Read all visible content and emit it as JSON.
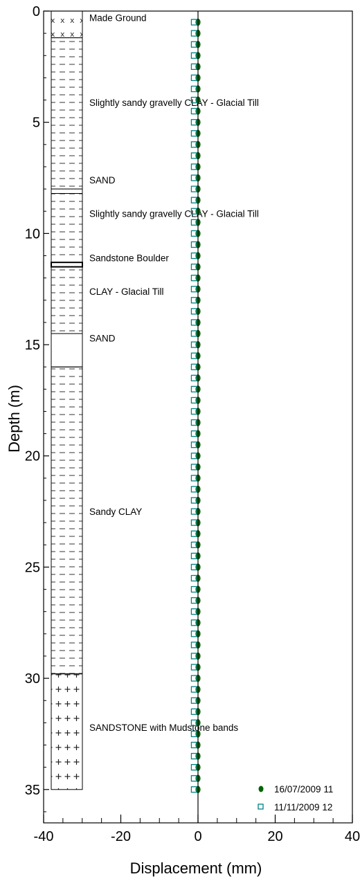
{
  "chart_data": {
    "type": "scatter",
    "title": "",
    "xlabel": "Displacement (mm)",
    "ylabel": "Depth (m)",
    "xlim": [
      -40,
      40
    ],
    "ylim": [
      0,
      36.5
    ],
    "y_inverted": true,
    "x_ticks": [
      "-40",
      "-20",
      "0",
      "20",
      "40"
    ],
    "y_ticks": [
      "0",
      "5",
      "10",
      "15",
      "20",
      "25",
      "30",
      "35"
    ],
    "grid": false,
    "legend_position": "bottom-right",
    "series": [
      {
        "name": "16/07/2009 11",
        "marker": "filled-circle",
        "color": "#006400",
        "x_value": 0,
        "depth_start": 0.5,
        "depth_end": 35.0,
        "depth_step": 0.5
      },
      {
        "name": "11/11/2009 12",
        "marker": "open-square",
        "color": "#008080",
        "x_value": -1.0,
        "depth_start": 0.5,
        "depth_end": 35.0,
        "depth_step": 0.5
      }
    ],
    "strata": [
      {
        "top": 0.0,
        "bottom": 1.2,
        "pattern": "cross",
        "label": "Made Ground",
        "label_depth": 0.3
      },
      {
        "top": 1.2,
        "bottom": 8.0,
        "pattern": "clay",
        "label": "Slightly sandy gravelly CLAY - Glacial Till",
        "label_depth": 4.1
      },
      {
        "top": 8.0,
        "bottom": 8.2,
        "pattern": "sand",
        "label": "SAND",
        "label_depth": 7.6
      },
      {
        "top": 8.2,
        "bottom": 11.3,
        "pattern": "clay",
        "label": "Slightly sandy gravelly CLAY - Glacial Till",
        "label_depth": 9.1
      },
      {
        "top": 11.3,
        "bottom": 11.5,
        "pattern": "boulder",
        "label": "Sandstone Boulder",
        "label_depth": 11.1
      },
      {
        "top": 11.5,
        "bottom": 14.5,
        "pattern": "clay",
        "label": "CLAY - Glacial Till",
        "label_depth": 12.6
      },
      {
        "top": 14.5,
        "bottom": 16.0,
        "pattern": "sand",
        "label": "SAND",
        "label_depth": 14.7
      },
      {
        "top": 16.0,
        "bottom": 29.8,
        "pattern": "clay",
        "label": "Sandy CLAY",
        "label_depth": 22.5
      },
      {
        "top": 29.8,
        "bottom": 35.0,
        "pattern": "plus",
        "label": "SANDSTONE with Mudstone bands",
        "label_depth": 32.2
      }
    ]
  }
}
